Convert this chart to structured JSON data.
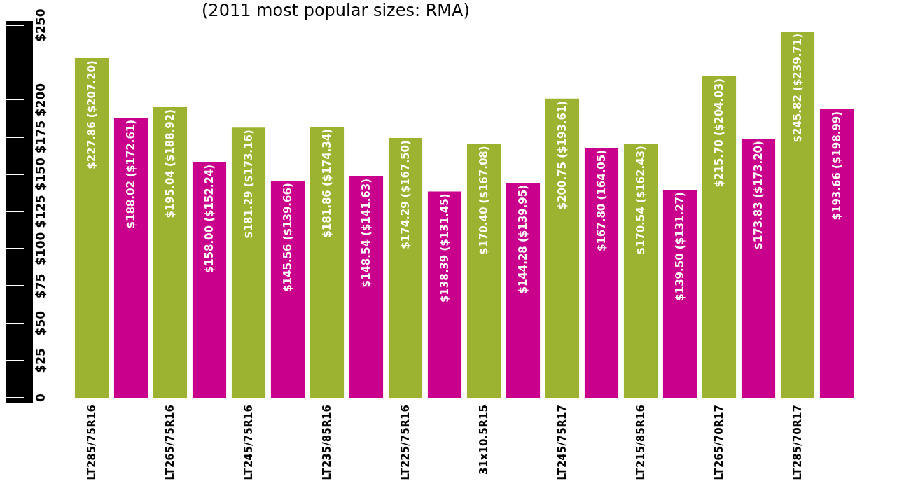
{
  "chart_data": {
    "type": "bar",
    "title": "(2011 most popular sizes: RMA)",
    "categories": [
      "LT285/75R16",
      null,
      "LT265/75R16",
      null,
      "LT245/75R16",
      null,
      "LT235/85R16",
      null,
      "LT225/75R16",
      null,
      "31x10.5R15",
      null,
      "LT245/75R17",
      null,
      "LT215/85R16",
      null,
      "LT265/70R17",
      null,
      "LT285/70R17",
      null
    ],
    "values": [
      227.86,
      188.02,
      195.04,
      158.0,
      181.29,
      145.56,
      181.86,
      148.54,
      174.29,
      138.39,
      170.4,
      144.28,
      200.75,
      167.8,
      170.54,
      139.5,
      215.7,
      173.83,
      245.82,
      193.66
    ],
    "colors": [
      "#9cb332",
      "#c8008c",
      "#9cb332",
      "#c8008c",
      "#9cb332",
      "#c8008c",
      "#9cb332",
      "#c8008c",
      "#9cb332",
      "#c8008c",
      "#9cb332",
      "#c8008c",
      "#9cb332",
      "#c8008c",
      "#9cb332",
      "#c8008c",
      "#9cb332",
      "#c8008c",
      "#9cb332",
      "#c8008c"
    ],
    "value_labels": [
      "$227.86 ($207.20)",
      "$188.02 ($172.61)",
      "$195.04 ($188.92)",
      "$158.00 ($152.24)",
      "$181.29 ($173.16)",
      "$145.56 ($139.66)",
      "$181.86 ($174.34)",
      "$148.54 ($141.63)",
      "$174.29 ($167.50)",
      "$138.39 ($131.45)",
      "$170.40 ($167.08)",
      "$144.28 ($139.95)",
      "$200.75 ($193.61)",
      "$167.80 (164.05)",
      "$170.54 ($162.43)",
      "$139.50 ($131.27)",
      "$215.70 ($204.03)",
      "$173.83 ($173.20)",
      "$245.82 ($239.71)",
      "$193.66 ($198.99)"
    ],
    "ylim": [
      0,
      250
    ],
    "yticks": [
      0,
      {
        "value": 25,
        "label": "$25"
      },
      {
        "value": 50,
        "label": "$50"
      },
      {
        "value": 75,
        "label": "$75"
      },
      {
        "value": 100,
        "label": "$100"
      },
      {
        "value": 125,
        "label": "$125"
      },
      {
        "value": 150,
        "label": "$150"
      },
      {
        "value": 175,
        "label": "$175"
      },
      {
        "value": 200,
        "label": "$200"
      },
      {
        "value": 250,
        "label": "$250"
      }
    ],
    "grid": false
  }
}
